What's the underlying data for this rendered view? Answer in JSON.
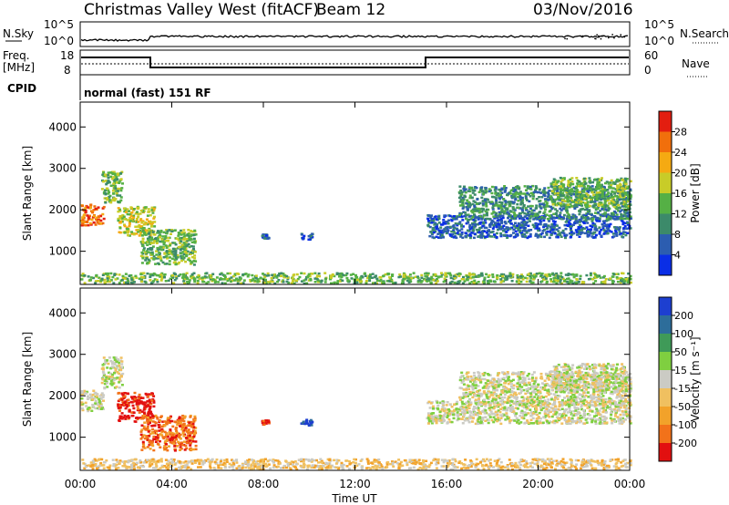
{
  "header": {
    "title": "Christmas Valley West (fitACF)",
    "beam": "Beam 12",
    "date": "03/Nov/2016"
  },
  "strip_labels": {
    "nsky": "N.Sky",
    "nsky_hi": "10^5",
    "nsky_lo": "10^0",
    "nsearch": "N.Search",
    "nsearch_hi": "10^5",
    "nsearch_lo": "10^0",
    "freq_line1": "Freq.",
    "freq_line2": "[MHz]",
    "freq_hi": "18",
    "freq_lo": "8",
    "nave": "Nave",
    "nave_hi": "60",
    "nave_lo": "0",
    "cpid": "CPID",
    "cpid_value": "normal (fast) 151 RF"
  },
  "chart_data": [
    {
      "type": "heatmap",
      "panel": "power",
      "ylabel": "Slant Range [km]",
      "ylim": [
        200,
        4600
      ],
      "yticks": [
        "1000",
        "2000",
        "3000",
        "4000"
      ],
      "colorbar": {
        "label": "Power [dB]",
        "ticks": [
          "4",
          "8",
          "12",
          "16",
          "20",
          "24",
          "28"
        ],
        "colors": [
          "#0a2ee6",
          "#2c5db0",
          "#3c8a6a",
          "#55b045",
          "#c8cc28",
          "#f5aa12",
          "#f16f0c",
          "#e31e10"
        ]
      },
      "regions": [
        {
          "t0": 0.0,
          "t1": 1.0,
          "r0": 1650,
          "r1": 2150,
          "level": 6
        },
        {
          "t0": 0.9,
          "t1": 1.8,
          "r0": 2200,
          "r1": 2950,
          "level": 3
        },
        {
          "t0": 1.6,
          "t1": 3.2,
          "r0": 1400,
          "r1": 2100,
          "level": 4
        },
        {
          "t0": 2.6,
          "t1": 5.0,
          "r0": 700,
          "r1": 1550,
          "level": 3
        },
        {
          "t0": 9.6,
          "t1": 10.1,
          "r0": 1300,
          "r1": 1450,
          "level": 1
        },
        {
          "t0": 7.9,
          "t1": 8.2,
          "r0": 1330,
          "r1": 1430,
          "level": 1
        },
        {
          "t0": 15.1,
          "t1": 24.0,
          "r0": 1350,
          "r1": 1900,
          "level": 1
        },
        {
          "t0": 16.5,
          "t1": 24.0,
          "r0": 1800,
          "r1": 2600,
          "level": 2
        },
        {
          "t0": 20.5,
          "t1": 24.0,
          "r0": 2100,
          "r1": 2800,
          "level": 3
        },
        {
          "t0": 0.0,
          "t1": 24.0,
          "r0": 250,
          "r1": 500,
          "level": 3
        }
      ]
    },
    {
      "type": "heatmap",
      "panel": "velocity",
      "ylabel": "Slant Range [km]",
      "ylim": [
        200,
        4600
      ],
      "yticks": [
        "1000",
        "2000",
        "3000",
        "4000"
      ],
      "xlabel": "Time UT",
      "xticks": [
        "00:00",
        "04:00",
        "08:00",
        "12:00",
        "16:00",
        "20:00",
        "00:00"
      ],
      "colorbar": {
        "label": "Velocity [m s⁻¹]",
        "ticks": [
          "200",
          "100",
          "50",
          "15",
          "-15",
          "-50",
          "-100",
          "-200"
        ],
        "colors": [
          "#1d3fd0",
          "#2d6d9a",
          "#3f9a58",
          "#7fcf40",
          "#cbcbc4",
          "#f0c060",
          "#f2a22a",
          "#f2721a",
          "#e21010"
        ]
      },
      "regions": [
        {
          "t0": 0.0,
          "t1": 1.0,
          "r0": 1650,
          "r1": 2150,
          "level": 4
        },
        {
          "t0": 0.9,
          "t1": 1.8,
          "r0": 2200,
          "r1": 2950,
          "level": 4
        },
        {
          "t0": 1.6,
          "t1": 3.2,
          "r0": 1400,
          "r1": 2100,
          "level": 8
        },
        {
          "t0": 2.6,
          "t1": 5.0,
          "r0": 700,
          "r1": 1550,
          "level": 7
        },
        {
          "t0": 9.6,
          "t1": 10.1,
          "r0": 1300,
          "r1": 1450,
          "level": 0
        },
        {
          "t0": 7.9,
          "t1": 8.2,
          "r0": 1330,
          "r1": 1430,
          "level": 8
        },
        {
          "t0": 15.1,
          "t1": 24.0,
          "r0": 1350,
          "r1": 1900,
          "level": 4
        },
        {
          "t0": 16.5,
          "t1": 24.0,
          "r0": 1800,
          "r1": 2600,
          "level": 4
        },
        {
          "t0": 20.5,
          "t1": 24.0,
          "r0": 2100,
          "r1": 2800,
          "level": 4
        },
        {
          "t0": 0.0,
          "t1": 24.0,
          "r0": 250,
          "r1": 500,
          "level": 5
        }
      ]
    }
  ]
}
